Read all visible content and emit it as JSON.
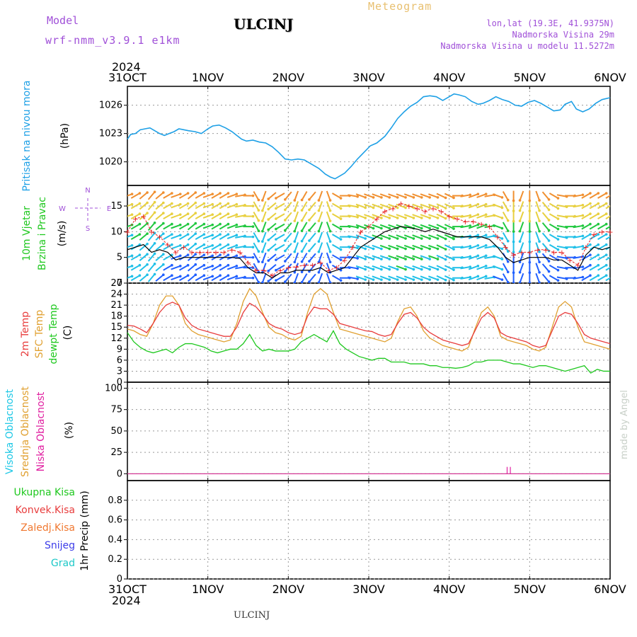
{
  "header": {
    "model_label": "Model",
    "model_name": "wrf-nmm_v3.9.1  e1km",
    "station": "ULCINJ",
    "product": "Meteogram",
    "lonlat": "lon,lat (19.3E, 41.9375N)",
    "elevation": "Nadmorska Visina 29m",
    "model_elevation": "Nadmorska Visina u modelu 11.5272m",
    "footer_station": "ULCINJ",
    "credit": "made by Angel"
  },
  "time_axis": {
    "year": "2024",
    "ticks": [
      "31OCT",
      "1NOV",
      "2NOV",
      "3NOV",
      "4NOV",
      "5NOV",
      "6NOV"
    ]
  },
  "colors": {
    "pressure": "#1ea0e6",
    "temp2m": "#e83c3c",
    "sfc_temp": "#e0a030",
    "dewpt": "#1ec81e",
    "wind_speed": "#000000",
    "wind_gust": "#e82020",
    "high_cloud": "#1ec8e6",
    "mid_cloud": "#e0a030",
    "low_cloud": "#e01ea0",
    "total_precip": "#1ec81e",
    "conv_precip": "#e83c3c",
    "frz_precip": "#f07830",
    "snow": "#3c3ce8",
    "graupel": "#1ec8c8"
  },
  "chart_data": [
    {
      "type": "line",
      "panel": "pressure",
      "label_lines": [
        "Pritisak na nivou mora"
      ],
      "unit": "(hPa)",
      "ylim": [
        1017.5,
        1028
      ],
      "yticks": [
        1020,
        1023,
        1026
      ],
      "grid": true,
      "x_days": [
        0,
        0.04,
        0.1,
        0.16,
        0.22,
        0.28,
        0.34,
        0.4,
        0.46,
        0.52,
        0.58,
        0.64,
        0.7,
        0.76,
        0.84,
        0.92,
        1.0,
        1.06,
        1.14,
        1.22,
        1.3,
        1.36,
        1.42,
        1.48,
        1.56,
        1.64,
        1.72,
        1.8,
        1.88,
        1.96,
        2.04,
        2.12,
        2.2,
        2.3,
        2.38,
        2.46,
        2.52,
        2.58,
        2.64,
        2.7,
        2.78,
        2.86,
        2.94,
        3.02,
        3.1,
        3.2,
        3.28,
        3.36,
        3.44,
        3.52,
        3.6,
        3.68,
        3.76,
        3.84,
        3.92,
        4.0,
        4.06,
        4.12,
        4.2,
        4.28,
        4.36,
        4.42,
        4.5,
        4.58,
        4.66,
        4.74,
        4.82,
        4.9,
        4.98,
        5.06,
        5.14,
        5.22,
        5.3,
        5.38,
        5.44,
        5.52,
        5.58,
        5.66,
        5.74,
        5.82,
        5.9,
        6.0
      ],
      "series": [
        {
          "values": [
            1022.4,
            1022.9,
            1023.0,
            1023.4,
            1023.5,
            1023.6,
            1023.3,
            1023.0,
            1022.8,
            1023.0,
            1023.2,
            1023.5,
            1023.4,
            1023.3,
            1023.2,
            1023.0,
            1023.5,
            1023.8,
            1023.9,
            1023.6,
            1023.2,
            1022.8,
            1022.4,
            1022.2,
            1022.3,
            1022.1,
            1022.0,
            1021.6,
            1021.0,
            1020.3,
            1020.2,
            1020.3,
            1020.2,
            1019.7,
            1019.3,
            1018.7,
            1018.4,
            1018.2,
            1018.5,
            1018.8,
            1019.5,
            1020.3,
            1021.0,
            1021.7,
            1022.0,
            1022.7,
            1023.6,
            1024.6,
            1025.3,
            1025.9,
            1026.3,
            1026.9,
            1027.0,
            1026.9,
            1026.5,
            1026.9,
            1027.2,
            1027.1,
            1026.9,
            1026.4,
            1026.1,
            1026.2,
            1026.5,
            1026.9,
            1026.6,
            1026.4,
            1026.0,
            1025.9,
            1026.3,
            1026.5,
            1026.2,
            1025.8,
            1025.4,
            1025.5,
            1026.1,
            1026.4,
            1025.6,
            1025.3,
            1025.6,
            1026.2,
            1026.6,
            1026.8
          ]
        }
      ]
    },
    {
      "type": "line",
      "panel": "wind",
      "label_lines": [
        "10m Vjetar",
        "Brzina i Pravac"
      ],
      "unit": "(m/s)",
      "compass": {
        "n": "N",
        "e": "E",
        "w": "W",
        "s": "S"
      },
      "ylim": [
        0,
        19
      ],
      "yticks": [
        0,
        5,
        10,
        15
      ],
      "grid": true,
      "x_days": [
        0,
        0.1,
        0.2,
        0.3,
        0.4,
        0.5,
        0.6,
        0.7,
        0.8,
        0.9,
        1.0,
        1.1,
        1.2,
        1.3,
        1.4,
        1.5,
        1.6,
        1.7,
        1.8,
        1.9,
        2.0,
        2.1,
        2.2,
        2.3,
        2.4,
        2.5,
        2.6,
        2.7,
        2.8,
        2.9,
        3.0,
        3.1,
        3.2,
        3.3,
        3.4,
        3.5,
        3.6,
        3.7,
        3.8,
        3.9,
        4.0,
        4.1,
        4.2,
        4.3,
        4.4,
        4.5,
        4.6,
        4.7,
        4.8,
        4.9,
        5.0,
        5.1,
        5.2,
        5.3,
        5.4,
        5.5,
        5.6,
        5.7,
        5.8,
        5.9,
        6.0
      ],
      "series": [
        {
          "name": "speed",
          "values": [
            6.5,
            7.0,
            7.5,
            6.0,
            6.5,
            6.0,
            4.5,
            5.0,
            5.0,
            5.0,
            5.0,
            5.0,
            5.0,
            5.0,
            4.8,
            3.0,
            2.0,
            2.0,
            1.0,
            2.0,
            2.0,
            2.5,
            2.5,
            2.5,
            3.0,
            2.0,
            2.5,
            3.0,
            5.0,
            7.0,
            8.0,
            9.0,
            10.0,
            10.5,
            11.0,
            10.8,
            10.5,
            10.0,
            10.5,
            10.0,
            9.5,
            9.0,
            9.0,
            9.0,
            9.0,
            8.5,
            7.0,
            5.0,
            4.0,
            4.5,
            5.0,
            5.0,
            5.0,
            4.5,
            4.5,
            3.5,
            2.5,
            5.5,
            7.0,
            6.5,
            7.0
          ]
        },
        {
          "name": "gust",
          "values": [
            10.0,
            12.5,
            13.0,
            10.0,
            9.0,
            7.5,
            6.0,
            7.0,
            6.0,
            6.0,
            6.0,
            6.0,
            6.0,
            6.5,
            6.0,
            4.0,
            2.5,
            2.5,
            1.5,
            2.5,
            3.0,
            3.2,
            3.5,
            3.5,
            4.0,
            2.5,
            3.0,
            4.5,
            7.0,
            10.0,
            11.0,
            12.5,
            14.0,
            14.5,
            15.5,
            15.0,
            14.5,
            14.0,
            14.5,
            14.0,
            13.0,
            12.5,
            12.0,
            12.0,
            11.5,
            11.0,
            9.0,
            7.0,
            5.5,
            6.0,
            6.0,
            6.5,
            6.5,
            6.0,
            6.0,
            4.5,
            3.5,
            7.0,
            9.5,
            10.0,
            10.0
          ]
        }
      ],
      "direction_deg": [
        70,
        60,
        50,
        40,
        50,
        60,
        70,
        60,
        50,
        60,
        70,
        60,
        60,
        70,
        80,
        90,
        150,
        200,
        230,
        240,
        220,
        200,
        210,
        220,
        200,
        160,
        120,
        90,
        100,
        110,
        110,
        110,
        110,
        110,
        110,
        110,
        110,
        110,
        110,
        115,
        115,
        90,
        80,
        70,
        70,
        80,
        110,
        150,
        180,
        200,
        180,
        160,
        140,
        120,
        100,
        90,
        80,
        60,
        60,
        60,
        60
      ]
    },
    {
      "type": "line",
      "panel": "temperature",
      "label_lines": [
        "2m Temp",
        "SFC Temp",
        "dewpt Temp"
      ],
      "unit": "(C)",
      "ylim": [
        0,
        27
      ],
      "yticks": [
        0,
        3,
        6,
        9,
        12,
        15,
        18,
        21,
        24,
        27
      ],
      "grid": true,
      "x_days": [
        0,
        0.08,
        0.16,
        0.24,
        0.32,
        0.4,
        0.48,
        0.56,
        0.64,
        0.72,
        0.8,
        0.88,
        0.96,
        1.04,
        1.12,
        1.2,
        1.28,
        1.36,
        1.44,
        1.52,
        1.6,
        1.68,
        1.76,
        1.84,
        1.92,
        2.0,
        2.08,
        2.16,
        2.24,
        2.32,
        2.4,
        2.48,
        2.56,
        2.64,
        2.72,
        2.8,
        2.88,
        2.96,
        3.04,
        3.12,
        3.2,
        3.28,
        3.36,
        3.44,
        3.52,
        3.6,
        3.68,
        3.76,
        3.84,
        3.92,
        4.0,
        4.08,
        4.16,
        4.24,
        4.32,
        4.4,
        4.48,
        4.56,
        4.64,
        4.72,
        4.8,
        4.88,
        4.96,
        5.04,
        5.12,
        5.2,
        5.28,
        5.36,
        5.44,
        5.52,
        5.6,
        5.68,
        5.76,
        5.84,
        5.92,
        6.0
      ],
      "series": [
        {
          "name": "2m",
          "values": [
            15.5,
            15.3,
            14.5,
            13.5,
            16.0,
            19.0,
            21.0,
            21.8,
            21.0,
            17.5,
            15.5,
            14.5,
            14.0,
            13.5,
            13.0,
            12.5,
            12.5,
            15.0,
            19.0,
            21.5,
            20.5,
            18.5,
            16.0,
            15.0,
            14.5,
            13.5,
            13.0,
            13.5,
            18.0,
            20.5,
            20.0,
            20.0,
            18.5,
            16.0,
            15.5,
            15.0,
            14.5,
            14.0,
            13.8,
            13.0,
            12.5,
            13.0,
            16.0,
            18.5,
            19.0,
            17.5,
            15.0,
            13.5,
            12.5,
            11.5,
            11.0,
            10.5,
            10.0,
            10.5,
            14.0,
            17.5,
            19.0,
            17.5,
            13.5,
            12.5,
            12.0,
            11.5,
            11.0,
            10.0,
            9.5,
            10.0,
            14.0,
            18.0,
            19.0,
            18.5,
            16.0,
            13.0,
            12.0,
            11.5,
            11.0,
            10.5
          ]
        },
        {
          "name": "sfc",
          "values": [
            14.5,
            14.0,
            13.0,
            12.5,
            16.0,
            21.0,
            23.5,
            23.5,
            21.0,
            16.0,
            14.0,
            13.0,
            12.5,
            12.0,
            11.5,
            11.0,
            11.5,
            16.0,
            22.0,
            25.5,
            23.5,
            19.0,
            15.0,
            13.5,
            13.0,
            12.0,
            11.5,
            12.5,
            19.0,
            24.0,
            25.5,
            24.0,
            19.0,
            14.5,
            14.0,
            13.5,
            13.0,
            12.5,
            12.0,
            11.5,
            11.0,
            12.0,
            16.5,
            20.0,
            20.5,
            18.0,
            14.0,
            12.0,
            11.0,
            10.0,
            9.5,
            9.0,
            8.5,
            9.5,
            14.5,
            19.0,
            20.5,
            18.0,
            12.5,
            11.5,
            11.0,
            10.5,
            10.0,
            9.0,
            8.5,
            9.5,
            15.0,
            20.5,
            22.0,
            20.5,
            15.0,
            11.0,
            10.5,
            10.0,
            9.5,
            9.0
          ]
        },
        {
          "name": "dewpt",
          "values": [
            13.5,
            11.0,
            9.5,
            8.5,
            8.0,
            8.5,
            9.0,
            8.0,
            9.5,
            10.5,
            10.5,
            10.0,
            9.5,
            8.5,
            8.0,
            8.5,
            9.0,
            9.0,
            10.5,
            13.0,
            10.0,
            8.5,
            9.0,
            8.5,
            8.5,
            8.5,
            9.0,
            11.0,
            12.0,
            13.0,
            12.0,
            11.0,
            14.0,
            10.5,
            9.0,
            8.0,
            7.0,
            6.5,
            6.0,
            6.5,
            6.5,
            5.5,
            5.5,
            5.5,
            5.0,
            5.0,
            5.0,
            4.5,
            4.5,
            4.0,
            4.0,
            3.8,
            4.0,
            4.5,
            5.5,
            5.5,
            6.0,
            6.0,
            6.0,
            5.5,
            5.0,
            5.0,
            4.5,
            4.0,
            4.5,
            4.5,
            4.0,
            3.5,
            3.0,
            3.5,
            4.0,
            4.5,
            2.5,
            3.5,
            3.0,
            3.0
          ]
        }
      ]
    },
    {
      "type": "line",
      "panel": "cloud",
      "label_lines": [
        "Visoka Oblacnost",
        "Srednja Oblacnost",
        "Niska Oblacnost"
      ],
      "unit": "(%)",
      "ylim": [
        -8,
        107
      ],
      "yticks": [
        0,
        25,
        50,
        75,
        100
      ],
      "grid": true,
      "x_days": [
        0,
        6
      ],
      "series": [
        {
          "name": "high",
          "values": [
            0,
            0
          ]
        },
        {
          "name": "mid",
          "values": [
            0,
            0
          ]
        },
        {
          "name": "low",
          "values": [
            0,
            0
          ]
        }
      ],
      "markers": [
        {
          "x_day": 4.72,
          "value": 8
        },
        {
          "x_day": 4.76,
          "value": 8
        }
      ]
    },
    {
      "type": "bar",
      "panel": "precip",
      "label_lines": [
        "Ukupna  Kisa",
        "Konvek.Kisa",
        "Zaledj.Kisa",
        "Snijeg",
        "Grad"
      ],
      "unit": "1hr Precip (mm)",
      "ylim": [
        0,
        1.0
      ],
      "yticks": [
        0,
        0.2,
        0.4,
        0.6,
        0.8
      ],
      "grid": true,
      "series": [
        {
          "name": "total",
          "values": []
        },
        {
          "name": "convective",
          "values": []
        },
        {
          "name": "freezing",
          "values": []
        },
        {
          "name": "snow",
          "values": []
        },
        {
          "name": "graupel",
          "values": []
        }
      ]
    }
  ]
}
